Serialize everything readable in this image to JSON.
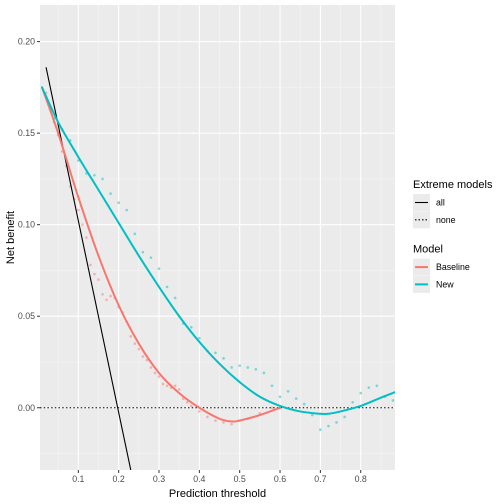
{
  "chart_data": {
    "type": "line",
    "title": "",
    "xlabel": "Prediction threshold",
    "ylabel": "Net benefit",
    "xlim": [
      0.005,
      0.885
    ],
    "ylim": [
      -0.034,
      0.22
    ],
    "x_ticks": [
      0.1,
      0.2,
      0.3,
      0.4,
      0.5,
      0.6,
      0.7,
      0.8
    ],
    "x_tick_labels": [
      "0.1",
      "0.2",
      "0.3",
      "0.4",
      "0.5",
      "0.6",
      "0.7",
      "0.8"
    ],
    "y_ticks": [
      0.0,
      0.05,
      0.1,
      0.15,
      0.2
    ],
    "y_tick_labels": [
      "0.00",
      "0.05",
      "0.10",
      "0.15",
      "0.20"
    ],
    "grid": true,
    "background_color": "#ebebeb",
    "legend_position": "right",
    "legends": [
      {
        "title": "Extreme models",
        "entries": [
          {
            "label": "all",
            "linetype": "solid",
            "color": "#000000"
          },
          {
            "label": "none",
            "linetype": "dotted",
            "color": "#000000"
          }
        ]
      },
      {
        "title": "Model",
        "entries": [
          {
            "label": "Baseline",
            "color": "#F8766D"
          },
          {
            "label": "New",
            "color": "#00BFC4"
          }
        ]
      }
    ],
    "reference_lines": [
      {
        "name": "all",
        "style": "solid",
        "color": "#000000",
        "x": [
          0.02,
          0.23
        ],
        "y": [
          0.186,
          -0.034
        ]
      },
      {
        "name": "none",
        "style": "dotted",
        "color": "#000000",
        "x": [
          0.005,
          0.885
        ],
        "y": [
          0.0,
          0.0
        ]
      }
    ],
    "series": [
      {
        "name": "Baseline",
        "color": "#F8766D",
        "smooth": {
          "x": [
            0.01,
            0.05,
            0.1,
            0.15,
            0.2,
            0.25,
            0.3,
            0.35,
            0.4,
            0.45,
            0.48,
            0.5,
            0.55,
            0.6
          ],
          "y": [
            0.175,
            0.15,
            0.115,
            0.083,
            0.056,
            0.035,
            0.019,
            0.008,
            0.0,
            -0.006,
            -0.0075,
            -0.007,
            -0.004,
            0.0
          ]
        },
        "points": {
          "x": [
            0.02,
            0.03,
            0.04,
            0.05,
            0.06,
            0.07,
            0.08,
            0.09,
            0.1,
            0.11,
            0.12,
            0.13,
            0.14,
            0.15,
            0.16,
            0.17,
            0.18,
            0.19,
            0.2,
            0.21,
            0.22,
            0.23,
            0.24,
            0.25,
            0.26,
            0.27,
            0.28,
            0.29,
            0.3,
            0.31,
            0.32,
            0.33,
            0.34,
            0.35,
            0.36,
            0.37,
            0.38,
            0.4,
            0.42,
            0.44,
            0.46,
            0.48,
            0.5,
            0.52,
            0.55,
            0.58
          ],
          "y": [
            0.172,
            0.163,
            0.156,
            0.149,
            0.14,
            0.132,
            0.121,
            0.114,
            0.108,
            0.1,
            0.093,
            0.078,
            0.073,
            0.07,
            0.062,
            0.059,
            0.061,
            0.06,
            0.055,
            0.052,
            0.047,
            0.039,
            0.035,
            0.032,
            0.028,
            0.026,
            0.022,
            0.019,
            0.017,
            0.013,
            0.012,
            0.011,
            0.012,
            0.01,
            0.005,
            0.003,
            0.001,
            -0.002,
            -0.005,
            -0.007,
            -0.008,
            -0.009,
            -0.007,
            -0.006,
            -0.003,
            0.0
          ]
        }
      },
      {
        "name": "New",
        "color": "#00BFC4",
        "smooth": {
          "x": [
            0.01,
            0.05,
            0.1,
            0.15,
            0.2,
            0.25,
            0.3,
            0.35,
            0.4,
            0.45,
            0.5,
            0.55,
            0.6,
            0.65,
            0.7,
            0.72,
            0.75,
            0.8,
            0.85,
            0.885
          ],
          "y": [
            0.175,
            0.156,
            0.137,
            0.119,
            0.101,
            0.083,
            0.066,
            0.05,
            0.036,
            0.024,
            0.014,
            0.006,
            0.001,
            -0.002,
            -0.0033,
            -0.0033,
            -0.002,
            0.001,
            0.0055,
            0.0085
          ]
        },
        "points": {
          "x": [
            0.02,
            0.04,
            0.06,
            0.08,
            0.1,
            0.12,
            0.14,
            0.16,
            0.18,
            0.2,
            0.22,
            0.24,
            0.26,
            0.28,
            0.3,
            0.32,
            0.34,
            0.36,
            0.38,
            0.4,
            0.42,
            0.44,
            0.46,
            0.48,
            0.5,
            0.52,
            0.54,
            0.56,
            0.58,
            0.6,
            0.62,
            0.64,
            0.66,
            0.68,
            0.7,
            0.72,
            0.74,
            0.76,
            0.78,
            0.8,
            0.82,
            0.84,
            0.86,
            0.88
          ],
          "y": [
            0.17,
            0.158,
            0.152,
            0.146,
            0.135,
            0.128,
            0.127,
            0.125,
            0.117,
            0.112,
            0.108,
            0.095,
            0.085,
            0.082,
            0.076,
            0.066,
            0.06,
            0.046,
            0.044,
            0.038,
            0.031,
            0.03,
            0.027,
            0.022,
            0.023,
            0.022,
            0.021,
            0.019,
            0.012,
            0.006,
            0.009,
            0.005,
            0.002,
            -0.004,
            -0.012,
            -0.01,
            -0.008,
            -0.005,
            0.003,
            0.008,
            0.011,
            0.012,
            0.006,
            0.004
          ]
        }
      }
    ]
  }
}
